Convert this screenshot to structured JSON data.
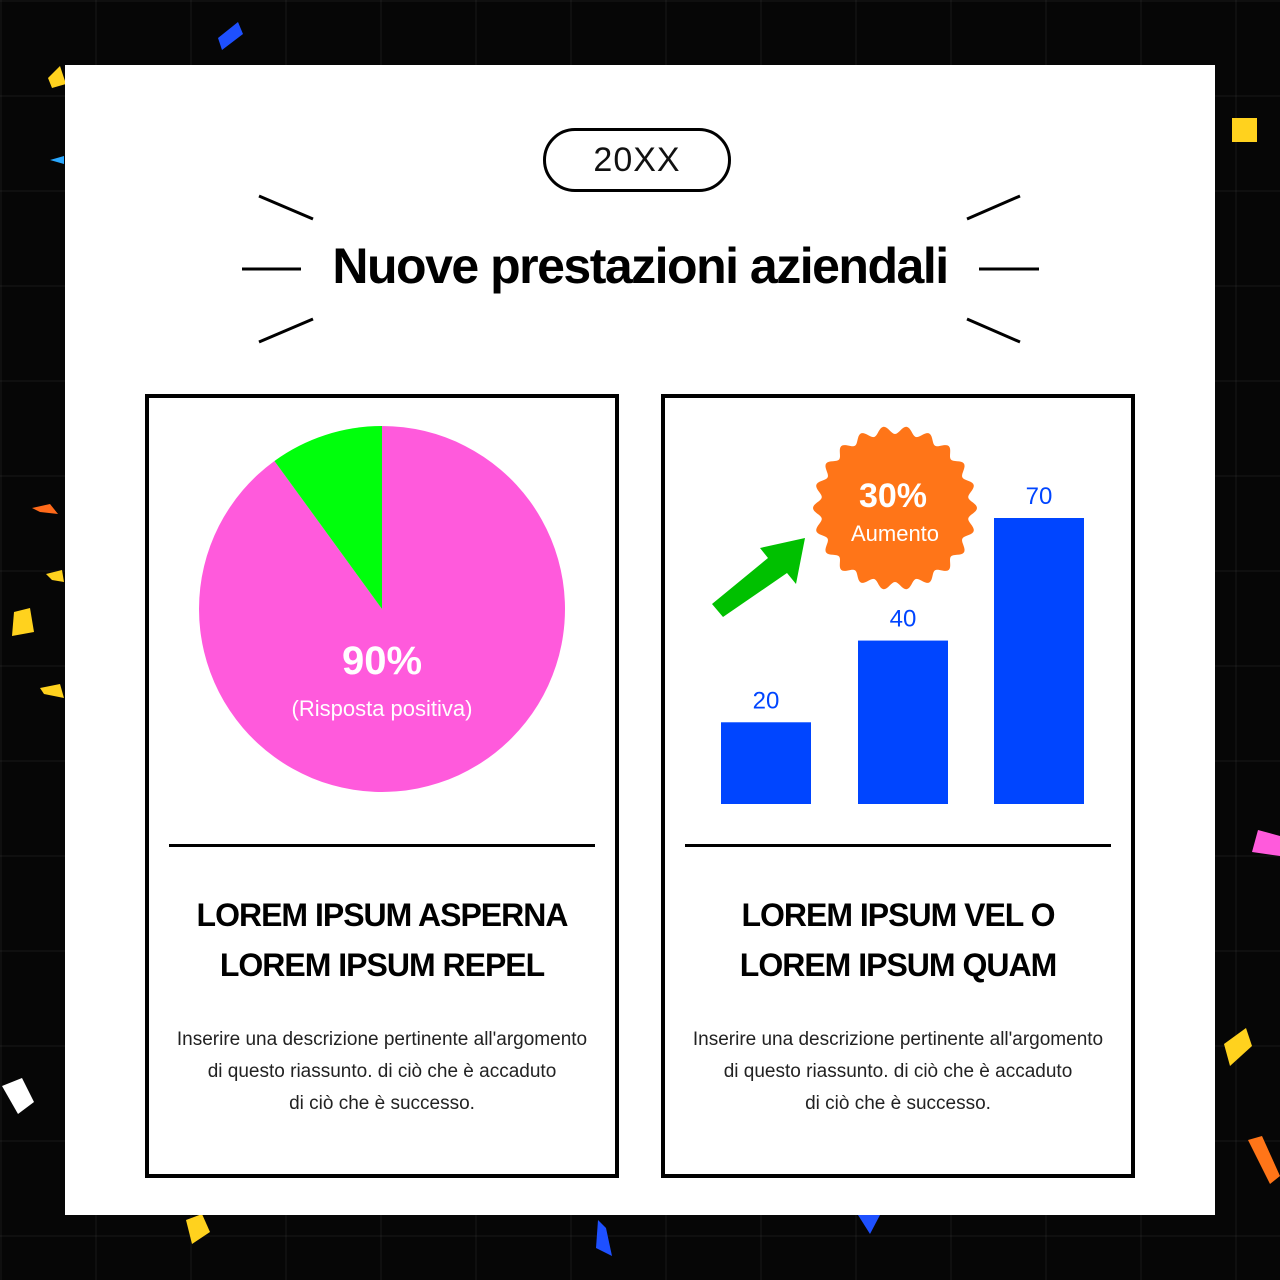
{
  "badge": {
    "year": "20XX"
  },
  "title": "Nuove prestazioni aziendali",
  "colors": {
    "background": "#060606",
    "sheet": "#ffffff",
    "pie_main": "#ff5adc",
    "pie_rest": "#00ff0c",
    "bars": "#0045ff",
    "badge": "#ff7518",
    "arrow": "#00c000"
  },
  "chart_data": [
    {
      "type": "pie",
      "values": [
        90,
        10
      ],
      "colors": [
        "#ff5adc",
        "#00ff0c"
      ],
      "center_label": "90%",
      "center_sublabel": "(Risposta positiva)"
    },
    {
      "type": "bar",
      "values": [
        20,
        40,
        70
      ],
      "data_labels": [
        "20",
        "40",
        "70"
      ],
      "ylim": [
        0,
        70
      ],
      "color": "#0045ff",
      "callout": {
        "value": "30%",
        "label": "Aumento",
        "icon": "arrow-up-right-icon"
      }
    }
  ],
  "cards": [
    {
      "heading": [
        "LOREM IPSUM ASPERNA",
        "LOREM IPSUM REPEL"
      ],
      "description": [
        "Inserire una descrizione pertinente all'argomento",
        "di questo riassunto. di ciò che è accaduto",
        "di ciò che è successo."
      ]
    },
    {
      "heading": [
        "LOREM IPSUM VEL O",
        "LOREM IPSUM QUAM"
      ],
      "description": [
        "Inserire una descrizione pertinente all'argomento",
        "di questo riassunto. di ciò che è accaduto",
        "di ciò che è successo."
      ]
    }
  ]
}
